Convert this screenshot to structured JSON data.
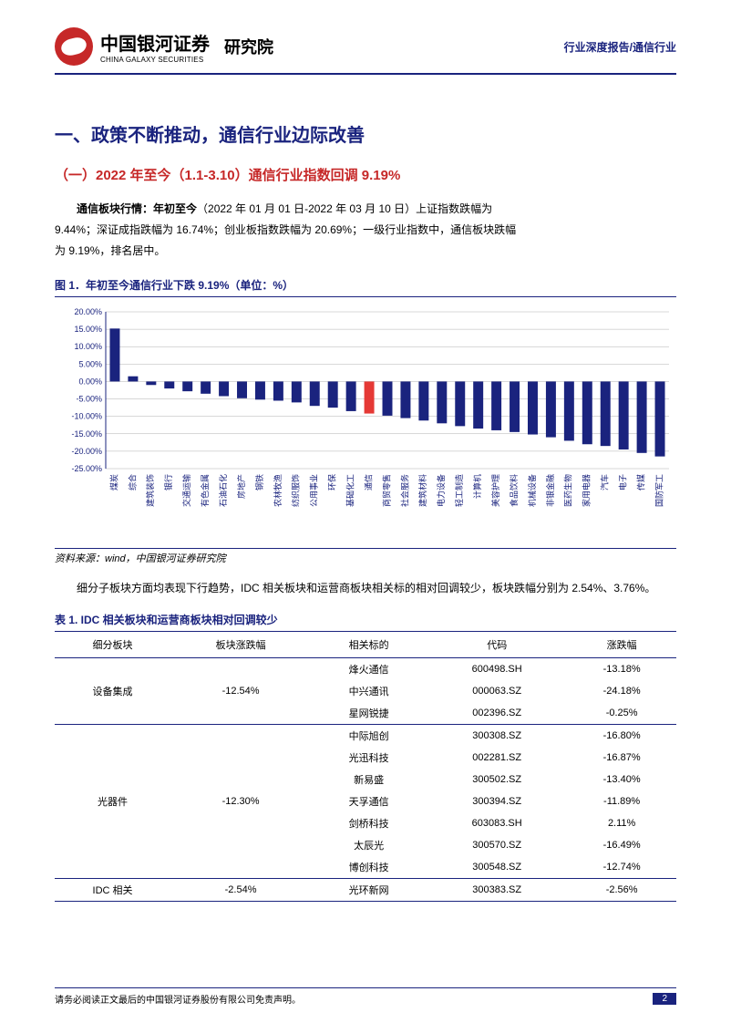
{
  "header": {
    "company_cn": "中国银河证券",
    "company_en": "CHINA GALAXY SECURITIES",
    "dept": "研究院",
    "right": "行业深度报告/通信行业"
  },
  "section_title": "一、政策不断推动，通信行业边际改善",
  "subsection_title": "（一）2022 年至今（1.1-3.10）通信行业指数回调 9.19%",
  "para1_lead": "通信板块行情：年初至今",
  "para1_rest": "（2022 年 01 月 01 日-2022 年 03 月 10 日）上证指数跌幅为",
  "para1_line2": "9.44%；深证成指跌幅为 16.74%；创业板指数跌幅为 20.69%；一级行业指数中，通信板块跌幅",
  "para1_line3": "为 9.19%，排名居中。",
  "fig_caption": "图 1．年初至今通信行业下跌 9.19%（单位：%）",
  "chart": {
    "type": "bar",
    "ylim": [
      -25,
      20
    ],
    "yticks": [
      -25,
      -20,
      -15,
      -10,
      -5,
      0,
      5,
      10,
      15,
      20
    ],
    "ytick_labels": [
      "-25.00%",
      "-20.00%",
      "-15.00%",
      "-10.00%",
      "-5.00%",
      "0.00%",
      "5.00%",
      "10.00%",
      "15.00%",
      "20.00%"
    ],
    "categories": [
      "煤炭",
      "综合",
      "建筑装饰",
      "银行",
      "交通运输",
      "有色金属",
      "石油石化",
      "房地产",
      "钢铁",
      "农林牧渔",
      "纺织服饰",
      "公用事业",
      "环保",
      "基础化工",
      "通信",
      "商贸零售",
      "社会服务",
      "建筑材料",
      "电力设备",
      "轻工制造",
      "计算机",
      "美容护理",
      "食品饮料",
      "机械设备",
      "非银金融",
      "医药生物",
      "家用电器",
      "汽车",
      "电子",
      "传媒",
      "国防军工"
    ],
    "values": [
      15.2,
      1.5,
      -1.0,
      -2.0,
      -2.8,
      -3.5,
      -4.2,
      -4.8,
      -5.2,
      -5.5,
      -6.0,
      -7.0,
      -7.5,
      -8.5,
      -9.19,
      -9.8,
      -10.5,
      -11.2,
      -12.0,
      -12.8,
      -13.5,
      -14.0,
      -14.5,
      -15.2,
      -16.0,
      -17.0,
      -18.0,
      -18.5,
      -19.5,
      -20.5,
      -21.5
    ],
    "highlight_index": 14,
    "bar_color": "#1a237e",
    "highlight_color": "#e53935",
    "grid_color": "#b0b0b0",
    "axis_color": "#1a237e",
    "background": "#ffffff",
    "label_fontsize": 9,
    "bar_width": 0.55
  },
  "source": "资料来源：wind，中国银河证券研究院",
  "para2": "细分子板块方面均表现下行趋势，IDC 相关板块和运营商板块相关标的相对回调较少，板块跌幅分别为 2.54%、3.76%。",
  "table_caption": "表 1. IDC 相关板块和运营商板块相对回调较少",
  "table": {
    "columns": [
      "细分板块",
      "板块涨跌幅",
      "相关标的",
      "代码",
      "涨跌幅"
    ],
    "groups": [
      {
        "segment": "设备集成",
        "change": "-12.54%",
        "rows": [
          {
            "name": "烽火通信",
            "code": "600498.SH",
            "chg": "-13.18%"
          },
          {
            "name": "中兴通讯",
            "code": "000063.SZ",
            "chg": "-24.18%"
          },
          {
            "name": "星网锐捷",
            "code": "002396.SZ",
            "chg": "-0.25%"
          }
        ]
      },
      {
        "segment": "光器件",
        "change": "-12.30%",
        "rows": [
          {
            "name": "中际旭创",
            "code": "300308.SZ",
            "chg": "-16.80%"
          },
          {
            "name": "光迅科技",
            "code": "002281.SZ",
            "chg": "-16.87%"
          },
          {
            "name": "新易盛",
            "code": "300502.SZ",
            "chg": "-13.40%"
          },
          {
            "name": "天孚通信",
            "code": "300394.SZ",
            "chg": "-11.89%"
          },
          {
            "name": "剑桥科技",
            "code": "603083.SH",
            "chg": "2.11%"
          },
          {
            "name": "太辰光",
            "code": "300570.SZ",
            "chg": "-16.49%"
          },
          {
            "name": "博创科技",
            "code": "300548.SZ",
            "chg": "-12.74%"
          }
        ]
      },
      {
        "segment": "IDC 相关",
        "change": "-2.54%",
        "rows": [
          {
            "name": "光环新网",
            "code": "300383.SZ",
            "chg": "-2.56%"
          }
        ]
      }
    ]
  },
  "footer": {
    "disclaimer": "请务必阅读正文最后的中国银河证券股份有限公司免责声明。",
    "page": "2"
  }
}
